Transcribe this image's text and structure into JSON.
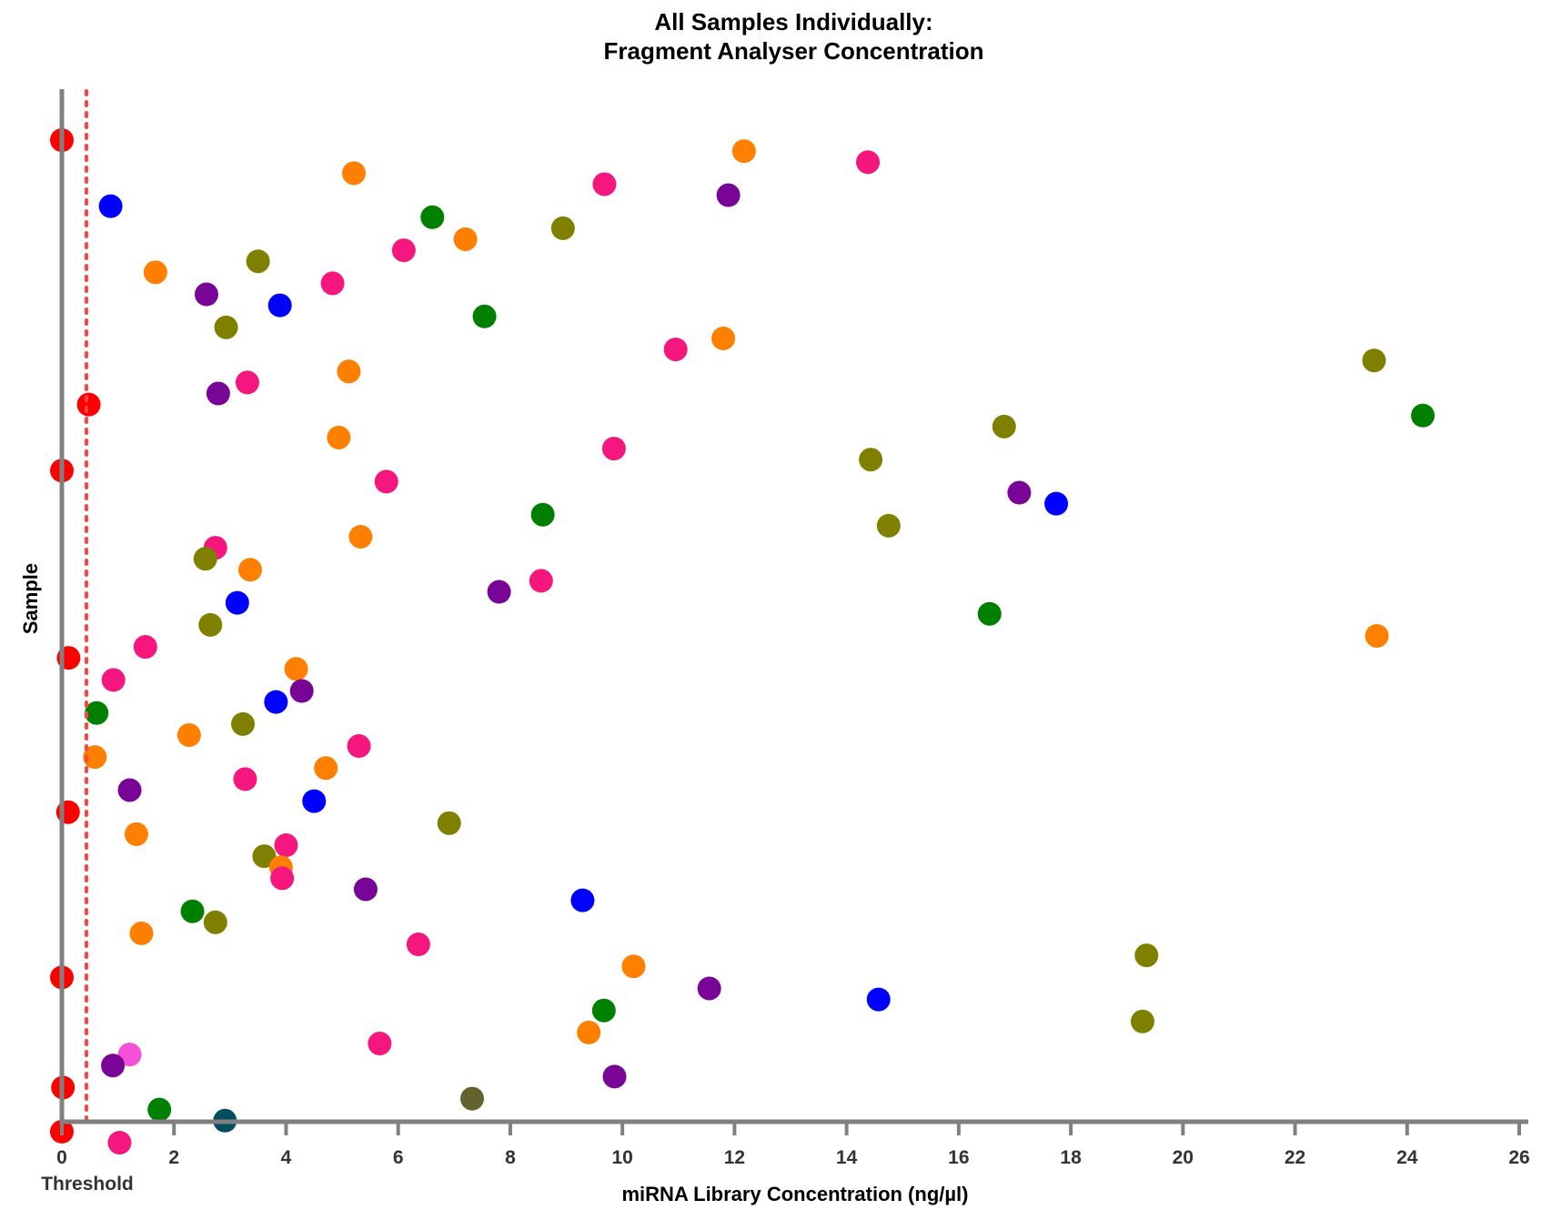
{
  "title": {
    "line1": "All Samples Individually:",
    "line2": "Fragment Analyser Concentration"
  },
  "axes": {
    "xlabel": "miRNA Library Concentration (ng/µl)",
    "ylabel": "Sample",
    "threshold_label": "Threshold",
    "xticks": [
      "0",
      "2",
      "4",
      "6",
      "8",
      "10",
      "12",
      "14",
      "16",
      "18",
      "20",
      "22",
      "24",
      "26"
    ]
  },
  "colors": {
    "axis": "#808080",
    "threshold": "#FF4444",
    "red": "#FF0000",
    "orange": "#FF8000",
    "pink": "#F5167E",
    "purple": "#780596",
    "blue": "#0000FF",
    "green": "#008000",
    "olive": "#808000",
    "lightpink": "#F550D8",
    "darkolive": "#636330",
    "teal": "#054E62"
  },
  "chart_data": {
    "type": "scatter",
    "title": "All Samples Individually: Fragment Analyser Concentration",
    "xlabel": "miRNA Library Concentration (ng/µl)",
    "ylabel": "Sample",
    "xlim": [
      0,
      26
    ],
    "xticks": [
      0,
      2,
      4,
      6,
      8,
      10,
      12,
      14,
      16,
      18,
      20,
      22,
      24,
      26
    ],
    "threshold": 0.45,
    "threshold_label": "Threshold",
    "grid": false,
    "legend": null,
    "y_ordering": "one sample per row, top to bottom (index 1 = top)",
    "points": [
      {
        "sample": 1,
        "x": 0.0,
        "color": "red"
      },
      {
        "sample": 2,
        "x": 12.17,
        "color": "orange"
      },
      {
        "sample": 3,
        "x": 14.38,
        "color": "pink"
      },
      {
        "sample": 4,
        "x": 5.21,
        "color": "orange"
      },
      {
        "sample": 5,
        "x": 9.68,
        "color": "pink"
      },
      {
        "sample": 6,
        "x": 11.89,
        "color": "purple"
      },
      {
        "sample": 7,
        "x": 0.87,
        "color": "blue"
      },
      {
        "sample": 8,
        "x": 6.61,
        "color": "green"
      },
      {
        "sample": 9,
        "x": 8.94,
        "color": "olive"
      },
      {
        "sample": 10,
        "x": 7.2,
        "color": "orange"
      },
      {
        "sample": 11,
        "x": 6.1,
        "color": "pink"
      },
      {
        "sample": 12,
        "x": 3.5,
        "color": "olive"
      },
      {
        "sample": 13,
        "x": 1.67,
        "color": "orange"
      },
      {
        "sample": 14,
        "x": 4.83,
        "color": "pink"
      },
      {
        "sample": 15,
        "x": 2.58,
        "color": "purple"
      },
      {
        "sample": 16,
        "x": 3.89,
        "color": "blue"
      },
      {
        "sample": 17,
        "x": 7.54,
        "color": "green"
      },
      {
        "sample": 18,
        "x": 2.93,
        "color": "olive"
      },
      {
        "sample": 19,
        "x": 11.8,
        "color": "orange"
      },
      {
        "sample": 20,
        "x": 10.95,
        "color": "pink"
      },
      {
        "sample": 21,
        "x": 23.41,
        "color": "olive"
      },
      {
        "sample": 22,
        "x": 5.12,
        "color": "orange"
      },
      {
        "sample": 23,
        "x": 3.31,
        "color": "pink"
      },
      {
        "sample": 24,
        "x": 2.79,
        "color": "purple"
      },
      {
        "sample": 25,
        "x": 0.48,
        "color": "red"
      },
      {
        "sample": 26,
        "x": 24.28,
        "color": "green"
      },
      {
        "sample": 27,
        "x": 16.81,
        "color": "olive"
      },
      {
        "sample": 28,
        "x": 4.94,
        "color": "orange"
      },
      {
        "sample": 29,
        "x": 9.85,
        "color": "pink"
      },
      {
        "sample": 30,
        "x": 14.43,
        "color": "olive"
      },
      {
        "sample": 31,
        "x": 0.0,
        "color": "red"
      },
      {
        "sample": 32,
        "x": 5.79,
        "color": "pink"
      },
      {
        "sample": 33,
        "x": 17.08,
        "color": "purple"
      },
      {
        "sample": 34,
        "x": 17.74,
        "color": "blue"
      },
      {
        "sample": 35,
        "x": 8.58,
        "color": "green"
      },
      {
        "sample": 36,
        "x": 14.75,
        "color": "olive"
      },
      {
        "sample": 37,
        "x": 5.33,
        "color": "orange"
      },
      {
        "sample": 38,
        "x": 2.74,
        "color": "pink"
      },
      {
        "sample": 39,
        "x": 2.56,
        "color": "olive"
      },
      {
        "sample": 40,
        "x": 3.36,
        "color": "orange"
      },
      {
        "sample": 41,
        "x": 8.55,
        "color": "pink"
      },
      {
        "sample": 42,
        "x": 7.8,
        "color": "purple"
      },
      {
        "sample": 43,
        "x": 3.13,
        "color": "blue"
      },
      {
        "sample": 44,
        "x": 16.55,
        "color": "green"
      },
      {
        "sample": 45,
        "x": 2.65,
        "color": "olive"
      },
      {
        "sample": 46,
        "x": 23.46,
        "color": "orange"
      },
      {
        "sample": 47,
        "x": 1.49,
        "color": "pink"
      },
      {
        "sample": 48,
        "x": 0.12,
        "color": "red"
      },
      {
        "sample": 49,
        "x": 4.18,
        "color": "orange"
      },
      {
        "sample": 50,
        "x": 0.92,
        "color": "pink"
      },
      {
        "sample": 51,
        "x": 4.28,
        "color": "purple"
      },
      {
        "sample": 52,
        "x": 3.82,
        "color": "blue"
      },
      {
        "sample": 53,
        "x": 0.62,
        "color": "green"
      },
      {
        "sample": 54,
        "x": 3.23,
        "color": "olive"
      },
      {
        "sample": 55,
        "x": 2.27,
        "color": "orange"
      },
      {
        "sample": 56,
        "x": 5.3,
        "color": "pink"
      },
      {
        "sample": 57,
        "x": 0.59,
        "color": "orange"
      },
      {
        "sample": 58,
        "x": 4.71,
        "color": "orange"
      },
      {
        "sample": 59,
        "x": 3.27,
        "color": "pink"
      },
      {
        "sample": 60,
        "x": 1.21,
        "color": "purple"
      },
      {
        "sample": 61,
        "x": 4.5,
        "color": "blue"
      },
      {
        "sample": 62,
        "x": 0.11,
        "color": "red"
      },
      {
        "sample": 63,
        "x": 6.91,
        "color": "olive"
      },
      {
        "sample": 64,
        "x": 1.33,
        "color": "orange"
      },
      {
        "sample": 65,
        "x": 4.0,
        "color": "pink"
      },
      {
        "sample": 66,
        "x": 3.61,
        "color": "olive"
      },
      {
        "sample": 67,
        "x": 3.91,
        "color": "orange"
      },
      {
        "sample": 68,
        "x": 3.93,
        "color": "pink"
      },
      {
        "sample": 69,
        "x": 5.42,
        "color": "purple"
      },
      {
        "sample": 70,
        "x": 9.29,
        "color": "blue"
      },
      {
        "sample": 71,
        "x": 2.33,
        "color": "green"
      },
      {
        "sample": 72,
        "x": 2.74,
        "color": "olive"
      },
      {
        "sample": 73,
        "x": 1.42,
        "color": "orange"
      },
      {
        "sample": 74,
        "x": 6.36,
        "color": "pink"
      },
      {
        "sample": 75,
        "x": 19.35,
        "color": "olive"
      },
      {
        "sample": 76,
        "x": 10.2,
        "color": "orange"
      },
      {
        "sample": 77,
        "x": 0.0,
        "color": "red"
      },
      {
        "sample": 78,
        "x": 11.55,
        "color": "purple"
      },
      {
        "sample": 79,
        "x": 14.57,
        "color": "blue"
      },
      {
        "sample": 80,
        "x": 9.67,
        "color": "green"
      },
      {
        "sample": 81,
        "x": 19.28,
        "color": "olive"
      },
      {
        "sample": 82,
        "x": 9.4,
        "color": "orange"
      },
      {
        "sample": 83,
        "x": 5.67,
        "color": "pink"
      },
      {
        "sample": 84,
        "x": 1.21,
        "color": "lightpink"
      },
      {
        "sample": 85,
        "x": 0.91,
        "color": "purple"
      },
      {
        "sample": 86,
        "x": 9.86,
        "color": "purple"
      },
      {
        "sample": 87,
        "x": 0.02,
        "color": "red"
      },
      {
        "sample": 88,
        "x": 7.32,
        "color": "darkolive"
      },
      {
        "sample": 89,
        "x": 1.74,
        "color": "green"
      },
      {
        "sample": 90,
        "x": 2.91,
        "color": "teal"
      },
      {
        "sample": 91,
        "x": 0.0,
        "color": "red"
      },
      {
        "sample": 92,
        "x": 1.03,
        "color": "pink"
      }
    ]
  }
}
